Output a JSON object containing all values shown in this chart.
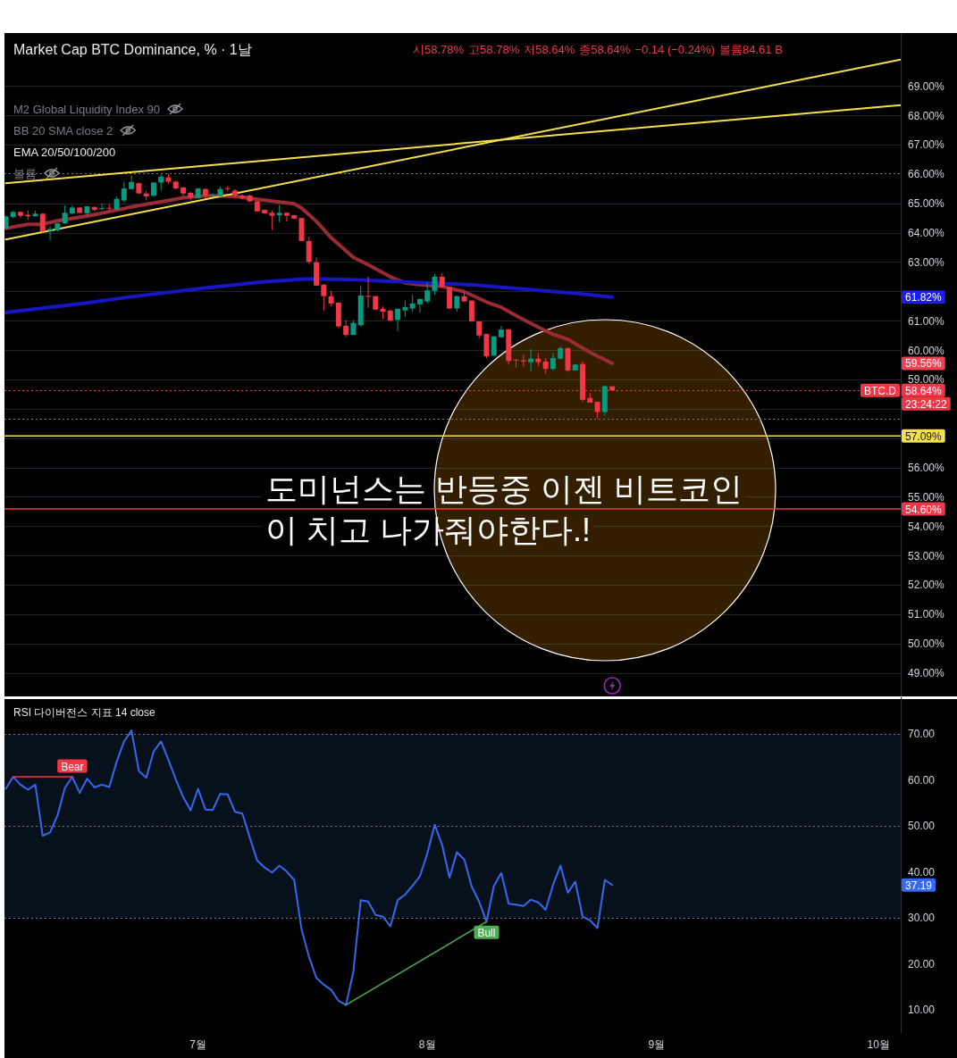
{
  "chart_data": [
    {
      "type": "candlestick",
      "title": "Market Cap BTC Dominance, % · 1날",
      "x": [
        "--06-05",
        "--06-06",
        "--06-07",
        "--06-08",
        "--06-09",
        "--06-10",
        "--06-11",
        "--06-12",
        "--06-13",
        "--06-14",
        "--06-15",
        "--06-16",
        "--06-17",
        "--06-18",
        "--06-19",
        "--06-20",
        "--06-21",
        "--06-22",
        "--06-23",
        "--06-24",
        "--06-25",
        "--06-26",
        "--06-27",
        "--06-28",
        "--06-29",
        "--06-30",
        "--07-01",
        "--07-02",
        "--07-03",
        "--07-04",
        "--07-05",
        "--07-06",
        "--07-07",
        "--07-08",
        "--07-09",
        "--07-10",
        "--07-11",
        "--07-12",
        "--07-13",
        "--07-14",
        "--07-15",
        "--07-16",
        "--07-17",
        "--07-18",
        "--07-19",
        "--07-20",
        "--07-21",
        "--07-22",
        "--07-23",
        "--07-24",
        "--07-25",
        "--07-26",
        "--07-27",
        "--07-28",
        "--07-29",
        "--07-30",
        "--07-31",
        "--08-01",
        "--08-02",
        "--08-03",
        "--08-04",
        "--08-05",
        "--08-06",
        "--08-07",
        "--08-08",
        "--08-09",
        "--08-10",
        "--08-11",
        "--08-12",
        "--08-13",
        "--08-14",
        "--08-15",
        "--08-16",
        "--08-17",
        "--08-18",
        "--08-19",
        "--08-20",
        "--08-21",
        "--08-22",
        "--08-23",
        "--08-24",
        "--08-25",
        "--08-26"
      ],
      "ohlc": [
        [
          64.16,
          64.6,
          64.14,
          64.57
        ],
        [
          64.55,
          64.76,
          64.5,
          64.72
        ],
        [
          64.72,
          64.74,
          64.52,
          64.59
        ],
        [
          64.62,
          64.77,
          64.46,
          64.57
        ],
        [
          64.57,
          64.76,
          64.56,
          64.66
        ],
        [
          64.66,
          64.68,
          64.0,
          64.06
        ],
        [
          64.08,
          64.23,
          63.75,
          64.14
        ],
        [
          64.1,
          64.35,
          64.05,
          64.33
        ],
        [
          64.33,
          64.94,
          64.31,
          64.69
        ],
        [
          64.67,
          64.94,
          64.64,
          64.87
        ],
        [
          64.87,
          64.89,
          64.67,
          64.69
        ],
        [
          64.67,
          64.92,
          64.57,
          64.91
        ],
        [
          64.89,
          64.91,
          64.74,
          64.79
        ],
        [
          64.83,
          65.01,
          64.77,
          64.85
        ],
        [
          64.86,
          64.99,
          64.73,
          64.84
        ],
        [
          64.81,
          65.24,
          64.79,
          65.16
        ],
        [
          65.11,
          65.75,
          65.04,
          65.52
        ],
        [
          65.5,
          65.96,
          65.48,
          65.74
        ],
        [
          65.7,
          65.72,
          65.33,
          65.35
        ],
        [
          65.35,
          65.45,
          65.11,
          65.25
        ],
        [
          65.27,
          65.73,
          65.25,
          65.72
        ],
        [
          65.72,
          65.99,
          65.45,
          65.92
        ],
        [
          65.9,
          66.02,
          65.68,
          65.75
        ],
        [
          65.75,
          65.78,
          65.48,
          65.52
        ],
        [
          65.55,
          65.58,
          65.25,
          65.35
        ],
        [
          65.37,
          65.4,
          65.11,
          65.21
        ],
        [
          65.19,
          65.54,
          65.17,
          65.52
        ],
        [
          65.5,
          65.52,
          65.19,
          65.27
        ],
        [
          65.27,
          65.36,
          65.24,
          65.31
        ],
        [
          65.25,
          65.58,
          65.23,
          65.5
        ],
        [
          65.53,
          65.6,
          65.43,
          65.51
        ],
        [
          65.45,
          65.5,
          65.2,
          65.28
        ],
        [
          65.28,
          65.32,
          65.15,
          65.2
        ],
        [
          65.28,
          65.3,
          65.06,
          65.08
        ],
        [
          65.08,
          65.1,
          64.72,
          64.74
        ],
        [
          64.79,
          64.8,
          64.65,
          64.67
        ],
        [
          64.69,
          64.77,
          64.1,
          64.59
        ],
        [
          64.61,
          64.96,
          64.37,
          64.69
        ],
        [
          64.69,
          64.71,
          64.39,
          64.59
        ],
        [
          64.61,
          64.62,
          64.47,
          64.49
        ],
        [
          64.51,
          64.52,
          63.72,
          63.73
        ],
        [
          63.73,
          63.88,
          62.95,
          63.02
        ],
        [
          63.0,
          63.17,
          62.2,
          62.21
        ],
        [
          62.24,
          62.26,
          61.36,
          61.85
        ],
        [
          61.85,
          62.03,
          61.5,
          61.6
        ],
        [
          61.63,
          61.63,
          60.76,
          60.82
        ],
        [
          60.84,
          61.04,
          60.45,
          60.53
        ],
        [
          60.53,
          61.04,
          60.53,
          60.94
        ],
        [
          60.86,
          62.21,
          60.82,
          61.87
        ],
        [
          61.86,
          62.51,
          61.45,
          61.84
        ],
        [
          61.85,
          61.86,
          61.38,
          61.39
        ],
        [
          61.42,
          61.5,
          61.06,
          61.32
        ],
        [
          61.36,
          61.39,
          60.99,
          61.02
        ],
        [
          61.04,
          61.43,
          60.65,
          61.42
        ],
        [
          61.36,
          61.7,
          61.14,
          61.48
        ],
        [
          61.43,
          61.9,
          61.32,
          61.6
        ],
        [
          61.57,
          61.77,
          61.29,
          61.75
        ],
        [
          61.67,
          62.31,
          61.6,
          62.05
        ],
        [
          62.03,
          62.61,
          61.9,
          62.51
        ],
        [
          62.51,
          62.63,
          62.14,
          62.16
        ],
        [
          62.16,
          62.18,
          61.41,
          61.43
        ],
        [
          61.43,
          61.87,
          61.32,
          61.85
        ],
        [
          61.85,
          62.03,
          61.65,
          61.67
        ],
        [
          61.7,
          61.72,
          60.97,
          60.99
        ],
        [
          60.99,
          61.0,
          60.41,
          60.51
        ],
        [
          60.56,
          60.57,
          59.74,
          59.8
        ],
        [
          59.82,
          60.49,
          59.81,
          60.48
        ],
        [
          60.45,
          60.84,
          60.43,
          60.71
        ],
        [
          60.72,
          60.74,
          59.52,
          59.64
        ],
        [
          59.69,
          59.7,
          59.42,
          59.67
        ],
        [
          59.66,
          59.87,
          59.44,
          59.62
        ],
        [
          59.6,
          60.05,
          59.3,
          59.72
        ],
        [
          59.72,
          59.92,
          59.47,
          59.6
        ],
        [
          59.62,
          59.74,
          59.21,
          59.37
        ],
        [
          59.37,
          59.92,
          59.32,
          59.74
        ],
        [
          59.72,
          60.13,
          59.7,
          60.08
        ],
        [
          60.08,
          60.1,
          59.27,
          59.32
        ],
        [
          59.32,
          59.53,
          59.31,
          59.52
        ],
        [
          59.54,
          59.62,
          58.25,
          58.32
        ],
        [
          58.38,
          58.55,
          58.22,
          58.22
        ],
        [
          58.25,
          58.25,
          57.67,
          57.9
        ],
        [
          57.9,
          58.81,
          57.78,
          58.78
        ],
        [
          58.78,
          58.78,
          58.64,
          58.64
        ]
      ],
      "colors": [
        "#089981",
        "#089981",
        "#f23645",
        "#f23645",
        "#089981",
        "#f23645",
        "#089981",
        "#089981",
        "#089981",
        "#089981",
        "#f23645",
        "#089981",
        "#f23645",
        "#089981",
        "#f23645",
        "#089981",
        "#089981",
        "#089981",
        "#f23645",
        "#f23645",
        "#089981",
        "#089981",
        "#f23645",
        "#f23645",
        "#f23645",
        "#f23645",
        "#089981",
        "#f23645",
        "#089981",
        "#089981",
        "#f23645",
        "#f23645",
        "#f23645",
        "#f23645",
        "#f23645",
        "#f23645",
        "#f23645",
        "#089981",
        "#f23645",
        "#f23645",
        "#f23645",
        "#f23645",
        "#f23645",
        "#f23645",
        "#f23645",
        "#f23645",
        "#f23645",
        "#089981",
        "#089981",
        "#f23645",
        "#f23645",
        "#f23645",
        "#f23645",
        "#089981",
        "#089981",
        "#089981",
        "#089981",
        "#089981",
        "#089981",
        "#f23645",
        "#f23645",
        "#089981",
        "#f23645",
        "#f23645",
        "#f23645",
        "#f23645",
        "#089981",
        "#089981",
        "#f23645",
        "#f23645",
        "#f23645",
        "#089981",
        "#f23645",
        "#f23645",
        "#089981",
        "#089981",
        "#f23645",
        "#089981",
        "#f23645",
        "#f23645",
        "#f23645",
        "#089981",
        "#f23645"
      ],
      "series": [
        {
          "type": "line",
          "color": "#9a2a33",
          "x": [
            "--06-05",
            "--06-08",
            "--06-10",
            "--06-12",
            "--06-16",
            "--06-20",
            "--06-22",
            "--06-24",
            "--06-27",
            "--06-29",
            "--07-02",
            "--07-06",
            "--07-10",
            "--07-14",
            "--07-15",
            "--07-17",
            "--07-19",
            "--07-22",
            "--07-24",
            "--07-27",
            "--07-29",
            "--07-31",
            "--08-03",
            "--08-06",
            "--08-09",
            "--08-11",
            "--08-13",
            "--08-16",
            "--08-18",
            "--08-20",
            "--08-23",
            "--08-26"
          ],
          "values": [
            64.16,
            64.3,
            64.3,
            64.42,
            64.58,
            64.78,
            64.89,
            64.98,
            65.11,
            65.2,
            65.27,
            65.25,
            65.12,
            65.0,
            64.85,
            64.4,
            63.84,
            63.17,
            62.92,
            62.51,
            62.3,
            62.24,
            62.18,
            62.0,
            61.65,
            61.47,
            61.19,
            60.79,
            60.55,
            60.38,
            59.93,
            59.56
          ]
        },
        {
          "type": "line",
          "color": "#1616c4",
          "x": [
            "--06-05",
            "--06-16",
            "--06-22",
            "--07-02",
            "--07-10",
            "--07-16",
            "--07-22",
            "--07-31",
            "--08-07",
            "--08-15",
            "--08-21",
            "--08-26"
          ],
          "values": [
            61.29,
            61.62,
            61.83,
            62.13,
            62.34,
            62.44,
            62.41,
            62.31,
            62.24,
            62.07,
            61.95,
            61.82
          ]
        },
        {
          "type": "line",
          "color": "#f5e048",
          "x": [
            "--06-05",
            "--10-04"
          ],
          "values": [
            65.7,
            68.36
          ]
        },
        {
          "type": "line",
          "color": "#f5e048",
          "x": [
            "--06-05",
            "--10-04"
          ],
          "values": [
            63.78,
            69.91
          ]
        }
      ],
      "xlim": [
        "--06-04T20:00",
        "--10-04"
      ],
      "ylim": [
        48.2,
        70.8
      ],
      "yticks": [
        {
          "value": 49,
          "label": "49.00%"
        },
        {
          "value": 50,
          "label": "50.00%"
        },
        {
          "value": 51,
          "label": "51.00%"
        },
        {
          "value": 52,
          "label": "52.00%"
        },
        {
          "value": 53,
          "label": "53.00%"
        },
        {
          "value": 54,
          "label": "54.00%"
        },
        {
          "value": 55,
          "label": "55.00%"
        },
        {
          "value": 56,
          "label": "56.00%"
        },
        {
          "value": 57,
          "label": null
        },
        {
          "value": 58,
          "label": null
        },
        {
          "value": 59,
          "label": "59.00%"
        },
        {
          "value": 60,
          "label": "60.00%"
        },
        {
          "value": 61,
          "label": "61.00%"
        },
        {
          "value": 62,
          "label": null
        },
        {
          "value": 63,
          "label": "63.00%"
        },
        {
          "value": 64,
          "label": "64.00%"
        },
        {
          "value": 65,
          "label": "65.00%"
        },
        {
          "value": 66,
          "label": "66.00%"
        },
        {
          "value": 67,
          "label": "67.00%"
        },
        {
          "value": 68,
          "label": "68.00%"
        },
        {
          "value": 69,
          "label": "69.00%"
        }
      ],
      "ref_lines": [
        {
          "axis": "y",
          "value": 66.02,
          "color": "#787b86",
          "line_style": "dotted"
        },
        {
          "axis": "y",
          "value": 58.64,
          "label": "58.64%",
          "color": "#f23645",
          "line_style": "dotted"
        },
        {
          "axis": "y",
          "value": 57.67,
          "color": "#787b86",
          "line_style": "dotted"
        },
        {
          "axis": "y",
          "value": 57.09,
          "label": "57.09%",
          "color": "#f5e048"
        },
        {
          "axis": "y",
          "value": 54.6,
          "label": "54.60%",
          "color": "#f23645"
        }
      ],
      "annotations": [
        "시58.78%",
        "고58.78%",
        "저58.64%",
        "종58.64%",
        "−0.14 (−0.24%)",
        "볼륨84.61 B",
        "M2 Global Liquidity Index 90",
        "BB 20 SMA close 2",
        "EMA 20/50/100/200",
        "볼륨",
        "도미넌스는 반등중 이젠 비트코인이 치고 나가줘야한다.!",
        "59.56%",
        "61.82%",
        {
          "text": "BTC.D",
          "y": 58.64
        },
        "23:24:22"
      ],
      "grid": "y",
      "tick_labels": "y"
    },
    {
      "type": "line",
      "title": "RSI 다이버전스 지표 14 close",
      "x": [
        "--06-05",
        "--06-06",
        "--06-07",
        "--06-08",
        "--06-09",
        "--06-10",
        "--06-11",
        "--06-12",
        "--06-13",
        "--06-14",
        "--06-15",
        "--06-16",
        "--06-17",
        "--06-18",
        "--06-19",
        "--06-20",
        "--06-21",
        "--06-22",
        "--06-23",
        "--06-24",
        "--06-25",
        "--06-26",
        "--06-27",
        "--06-28",
        "--06-29",
        "--06-30",
        "--07-01",
        "--07-02",
        "--07-03",
        "--07-04",
        "--07-05",
        "--07-06",
        "--07-07",
        "--07-08",
        "--07-09",
        "--07-10",
        "--07-11",
        "--07-12",
        "--07-13",
        "--07-14",
        "--07-15",
        "--07-16",
        "--07-17",
        "--07-18",
        "--07-19",
        "--07-20",
        "--07-21",
        "--07-22",
        "--07-23",
        "--07-24",
        "--07-25",
        "--07-26",
        "--07-27",
        "--07-28",
        "--07-29",
        "--07-30",
        "--07-31",
        "--08-01",
        "--08-02",
        "--08-03",
        "--08-04",
        "--08-05",
        "--08-06",
        "--08-07",
        "--08-08",
        "--08-09",
        "--08-10",
        "--08-11",
        "--08-12",
        "--08-13",
        "--08-14",
        "--08-15",
        "--08-16",
        "--08-17",
        "--08-18",
        "--08-19",
        "--08-20",
        "--08-21",
        "--08-22",
        "--08-23",
        "--08-24",
        "--08-25",
        "--08-26"
      ],
      "series": [
        {
          "color": "#3568f0",
          "values": [
            58.1,
            60.7,
            59.0,
            57.9,
            59.0,
            47.9,
            48.6,
            52.3,
            58.3,
            60.7,
            57.2,
            60.3,
            58.4,
            59.0,
            58.5,
            64.0,
            68.4,
            70.8,
            62.0,
            60.5,
            66.2,
            68.4,
            64.4,
            60.1,
            56.3,
            53.4,
            58.1,
            53.6,
            53.5,
            57.0,
            56.9,
            53.1,
            52.7,
            47.5,
            42.5,
            41.0,
            39.9,
            41.4,
            40.1,
            38.3,
            27.5,
            21.6,
            17.0,
            15.5,
            14.4,
            12.0,
            11.1,
            18.3,
            33.9,
            33.6,
            30.7,
            30.3,
            28.2,
            33.9,
            35.1,
            37.0,
            39.1,
            44.0,
            50.3,
            45.9,
            38.8,
            44.3,
            42.7,
            36.9,
            33.6,
            29.2,
            37.0,
            39.8,
            33.1,
            32.9,
            32.6,
            34.0,
            33.4,
            31.8,
            37.2,
            41.4,
            35.5,
            37.9,
            30.3,
            29.5,
            27.8,
            38.3,
            37.19
          ]
        },
        {
          "type": "line",
          "color": "#f23645",
          "x": [
            "--06-06",
            "--06-14"
          ],
          "values": [
            60.7,
            60.7
          ]
        },
        {
          "type": "line",
          "color": "#4caf50",
          "x": [
            "--07-21",
            "--08-09"
          ],
          "values": [
            11.1,
            29.2
          ]
        }
      ],
      "xlim": [
        "--06-04T20:00",
        "--10-04"
      ],
      "xticks": [
        {
          "value": "--07-01",
          "label": "7월"
        },
        {
          "value": "--08-01",
          "label": "8월"
        },
        {
          "value": "--09-01",
          "label": "9월"
        },
        {
          "value": "--10-01",
          "label": "10월"
        }
      ],
      "ylim": [
        5,
        78
      ],
      "yticks": [
        {
          "value": 10,
          "label": "10.00"
        },
        {
          "value": 20,
          "label": "20.00"
        },
        {
          "value": 30,
          "label": "30.00"
        },
        {
          "value": 40,
          "label": "40.00"
        },
        {
          "value": 50,
          "label": "50.00"
        },
        {
          "value": 60,
          "label": "60.00"
        },
        {
          "value": 70,
          "label": "70.00"
        }
      ],
      "bands": [
        {
          "axis": "y",
          "from": 30,
          "to": 70,
          "color": "#07111c"
        }
      ],
      "ref_lines": [
        {
          "axis": "y",
          "value": 70,
          "color": "#787b86",
          "line_style": "dotted"
        },
        {
          "axis": "y",
          "value": 50,
          "color": "#787b86",
          "line_style": "dotted"
        },
        {
          "axis": "y",
          "value": 30,
          "color": "#787b86",
          "line_style": "dotted"
        }
      ],
      "annotations": [
        {
          "text": "Bear",
          "x": "--06-14",
          "y": 60.7
        },
        {
          "text": "Bull",
          "x": "--08-09",
          "y": 29.2
        },
        "37.19"
      ]
    }
  ]
}
